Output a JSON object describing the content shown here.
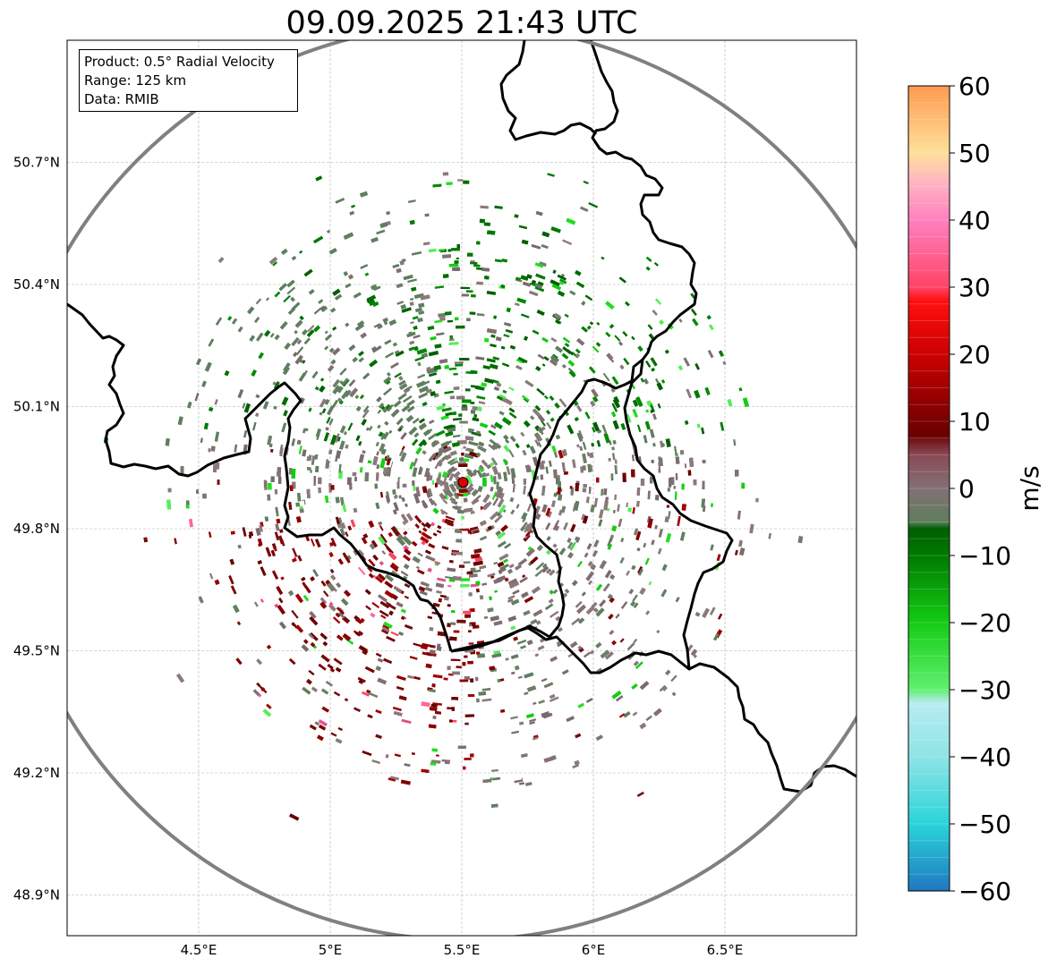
{
  "title": "09.09.2025 21:43 UTC",
  "info": {
    "product": "Product: 0.5° Radial Velocity",
    "range": "Range: 125 km",
    "data": "Data: RMIB"
  },
  "axes": {
    "lon_ticks": [
      {
        "value": 4.5,
        "label": "4.5°E"
      },
      {
        "value": 5.0,
        "label": "5°E"
      },
      {
        "value": 5.5,
        "label": "5.5°E"
      },
      {
        "value": 6.0,
        "label": "6°E"
      },
      {
        "value": 6.5,
        "label": "6.5°E"
      }
    ],
    "lat_ticks": [
      {
        "value": 48.9,
        "label": "48.9°N"
      },
      {
        "value": 49.2,
        "label": "49.2°N"
      },
      {
        "value": 49.5,
        "label": "49.5°N"
      },
      {
        "value": 49.8,
        "label": "49.8°N"
      },
      {
        "value": 50.1,
        "label": "50.1°N"
      },
      {
        "value": 50.4,
        "label": "50.4°N"
      },
      {
        "value": 50.7,
        "label": "50.7°N"
      }
    ],
    "lon_range": [
      4.0,
      7.0
    ],
    "lat_range": [
      48.8,
      51.0
    ]
  },
  "radar": {
    "site_lon": 5.505,
    "site_lat": 49.914,
    "range_km": 125
  },
  "colorbar": {
    "unit": "m/s",
    "min": -60,
    "max": 60,
    "ticks": [
      "60",
      "50",
      "40",
      "30",
      "20",
      "10",
      "0",
      "−10",
      "−20",
      "−30",
      "−40",
      "−50",
      "−60"
    ],
    "stops": [
      {
        "v": -60,
        "c": "#1f78c0"
      },
      {
        "v": -50,
        "c": "#2ad4da"
      },
      {
        "v": -40,
        "c": "#8ee4e6"
      },
      {
        "v": -32,
        "c": "#b8ecf0"
      },
      {
        "v": -30,
        "c": "#60f070"
      },
      {
        "v": -20,
        "c": "#14cc14"
      },
      {
        "v": -10,
        "c": "#007a00"
      },
      {
        "v": -6,
        "c": "#005f00"
      },
      {
        "v": -5,
        "c": "#5e7e5e"
      },
      {
        "v": 0,
        "c": "#827074"
      },
      {
        "v": 5,
        "c": "#8a4a56"
      },
      {
        "v": 8,
        "c": "#6a0000"
      },
      {
        "v": 20,
        "c": "#cc0000"
      },
      {
        "v": 28,
        "c": "#ff1010"
      },
      {
        "v": 30,
        "c": "#ff4466"
      },
      {
        "v": 40,
        "c": "#ff80c0"
      },
      {
        "v": 46,
        "c": "#ffb8c0"
      },
      {
        "v": 50,
        "c": "#ffe09a"
      },
      {
        "v": 60,
        "c": "#ff9a50"
      }
    ]
  },
  "colors": {
    "range_ring": "#808080",
    "border": "#000000",
    "site_marker": "#e00000"
  }
}
